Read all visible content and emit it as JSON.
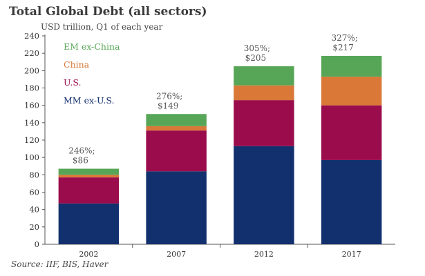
{
  "chart_data": {
    "type": "bar",
    "stacked": true,
    "title": "Total Global Debt (all sectors)",
    "subtitle": "USD trillion, Q1 of each year",
    "xlabel": "",
    "ylabel": "",
    "categories": [
      "2002",
      "2007",
      "2012",
      "2017"
    ],
    "ylim": [
      0,
      240
    ],
    "yticks": [
      0,
      20,
      40,
      60,
      80,
      100,
      120,
      140,
      160,
      180,
      200,
      220,
      240
    ],
    "grid": false,
    "legend_position": "top-left",
    "series": [
      {
        "name": "MM ex-U.S.",
        "color": "#12306e",
        "values": [
          47,
          84,
          113,
          97
        ]
      },
      {
        "name": "U.S.",
        "color": "#9a0c4c",
        "values": [
          30,
          47,
          53,
          63
        ]
      },
      {
        "name": "China",
        "color": "#d97837",
        "values": [
          3,
          5,
          17,
          33
        ]
      },
      {
        "name": "EM ex-China",
        "color": "#57a657",
        "values": [
          7,
          14,
          22,
          24
        ]
      }
    ],
    "annotations": [
      {
        "category": "2002",
        "pct": "246%;",
        "total": "$86"
      },
      {
        "category": "2007",
        "pct": "276%;",
        "total": "$149"
      },
      {
        "category": "2012",
        "pct": "305%;",
        "total": "$205"
      },
      {
        "category": "2017",
        "pct": "327%;",
        "total": "$217"
      }
    ],
    "source": "Source: IIF, BIS, Haver"
  }
}
